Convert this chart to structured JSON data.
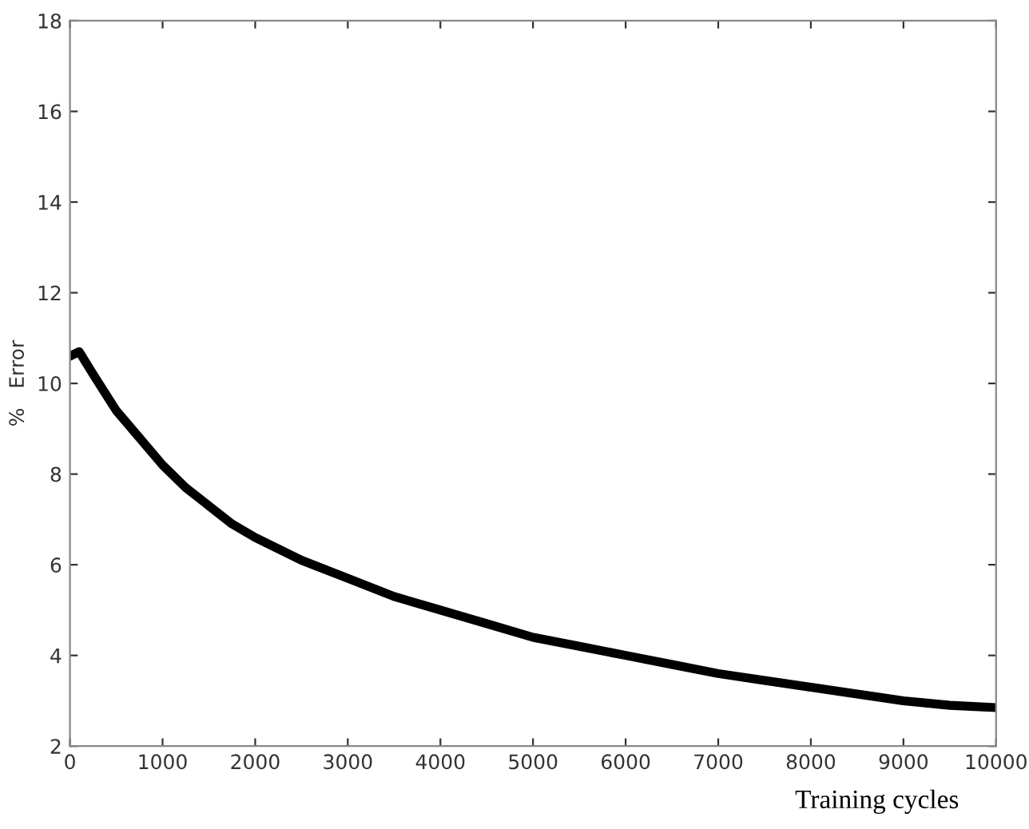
{
  "chart_data": {
    "type": "line",
    "xlabel": "Training cycles",
    "ylabel": "%   Error",
    "x": [
      0,
      100,
      250,
      500,
      750,
      1000,
      1250,
      1500,
      1750,
      2000,
      2500,
      3000,
      3500,
      4000,
      4500,
      5000,
      5500,
      6000,
      6500,
      7000,
      7500,
      8000,
      8500,
      9000,
      9500,
      10000
    ],
    "series": [
      {
        "color": "#000000",
        "values": [
          10.6,
          10.7,
          10.2,
          9.4,
          8.8,
          8.2,
          7.7,
          7.3,
          6.9,
          6.6,
          6.1,
          5.7,
          5.3,
          5.0,
          4.7,
          4.4,
          4.2,
          4.0,
          3.8,
          3.6,
          3.45,
          3.3,
          3.15,
          3.0,
          2.9,
          2.85
        ]
      }
    ],
    "xlim": [
      0,
      10000
    ],
    "xticks": [
      0,
      1000,
      2000,
      3000,
      4000,
      5000,
      6000,
      7000,
      8000,
      9000,
      10000
    ],
    "ylim": [
      2,
      18
    ],
    "yticks": [
      2,
      4,
      6,
      8,
      10,
      12,
      14,
      16,
      18
    ],
    "grid": false,
    "marker": "none",
    "line_style": "solid"
  }
}
